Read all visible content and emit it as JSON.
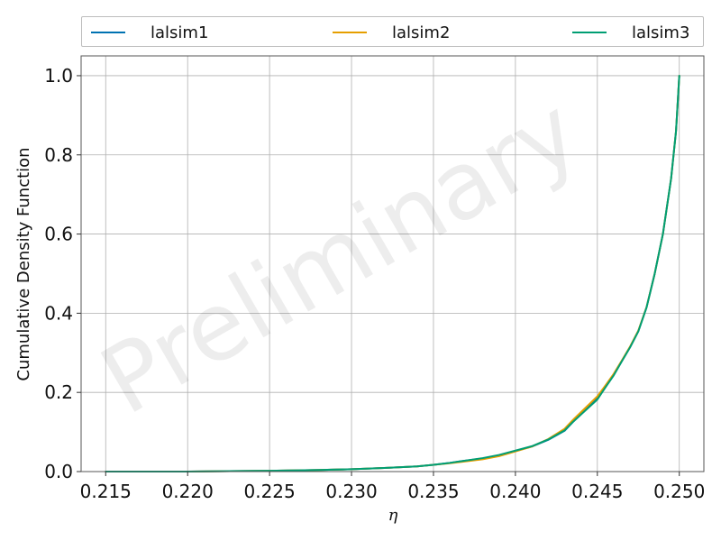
{
  "chart_data": {
    "type": "line",
    "title": "",
    "xlabel": "η",
    "ylabel": "Cumulative Density Function",
    "watermark": "Preliminary",
    "xlim": [
      0.2135,
      0.2515
    ],
    "ylim": [
      0.0,
      1.05
    ],
    "grid": true,
    "legend": {
      "placement": "top",
      "columns": 3
    },
    "xticks": [
      0.215,
      0.22,
      0.225,
      0.23,
      0.235,
      0.24,
      0.245,
      0.25
    ],
    "xtick_labels": [
      "0.215",
      "0.220",
      "0.225",
      "0.230",
      "0.235",
      "0.240",
      "0.245",
      "0.250"
    ],
    "yticks": [
      0.0,
      0.2,
      0.4,
      0.6,
      0.8,
      1.0
    ],
    "ytick_labels": [
      "0.0",
      "0.2",
      "0.4",
      "0.6",
      "0.8",
      "1.0"
    ],
    "series": [
      {
        "name": "lalsim1",
        "color": "#0072b2",
        "x": [
          0.215,
          0.22,
          0.225,
          0.228,
          0.23,
          0.232,
          0.234,
          0.235,
          0.236,
          0.237,
          0.238,
          0.239,
          0.24,
          0.241,
          0.242,
          0.243,
          0.2435,
          0.244,
          0.245,
          0.2455,
          0.246,
          0.2465,
          0.247,
          0.2475,
          0.248,
          0.2485,
          0.249,
          0.2495,
          0.2498,
          0.25
        ],
        "y": [
          0.0,
          0.0,
          0.002,
          0.004,
          0.006,
          0.009,
          0.013,
          0.017,
          0.022,
          0.028,
          0.033,
          0.041,
          0.052,
          0.063,
          0.08,
          0.103,
          0.125,
          0.145,
          0.185,
          0.215,
          0.245,
          0.28,
          0.315,
          0.355,
          0.415,
          0.5,
          0.6,
          0.74,
          0.86,
          1.0
        ]
      },
      {
        "name": "lalsim2",
        "color": "#e69f00",
        "x": [
          0.215,
          0.22,
          0.225,
          0.228,
          0.23,
          0.232,
          0.234,
          0.235,
          0.236,
          0.237,
          0.238,
          0.239,
          0.24,
          0.241,
          0.242,
          0.243,
          0.2435,
          0.244,
          0.245,
          0.2455,
          0.246,
          0.2465,
          0.247,
          0.2475,
          0.248,
          0.2485,
          0.249,
          0.2495,
          0.2498,
          0.25
        ],
        "y": [
          0.0,
          0.0,
          0.002,
          0.004,
          0.006,
          0.009,
          0.013,
          0.017,
          0.021,
          0.026,
          0.031,
          0.039,
          0.051,
          0.063,
          0.082,
          0.108,
          0.13,
          0.15,
          0.19,
          0.218,
          0.247,
          0.281,
          0.316,
          0.356,
          0.415,
          0.5,
          0.6,
          0.74,
          0.86,
          1.0
        ]
      },
      {
        "name": "lalsim3",
        "color": "#009e73",
        "x": [
          0.215,
          0.22,
          0.225,
          0.228,
          0.23,
          0.232,
          0.234,
          0.235,
          0.236,
          0.237,
          0.238,
          0.239,
          0.24,
          0.241,
          0.242,
          0.243,
          0.2435,
          0.244,
          0.245,
          0.2455,
          0.246,
          0.2465,
          0.247,
          0.2475,
          0.248,
          0.2485,
          0.249,
          0.2495,
          0.2498,
          0.25
        ],
        "y": [
          0.0,
          0.0,
          0.002,
          0.004,
          0.006,
          0.009,
          0.013,
          0.017,
          0.022,
          0.028,
          0.034,
          0.042,
          0.053,
          0.064,
          0.081,
          0.104,
          0.125,
          0.144,
          0.182,
          0.213,
          0.243,
          0.279,
          0.314,
          0.354,
          0.414,
          0.5,
          0.6,
          0.74,
          0.86,
          1.0
        ]
      }
    ]
  }
}
